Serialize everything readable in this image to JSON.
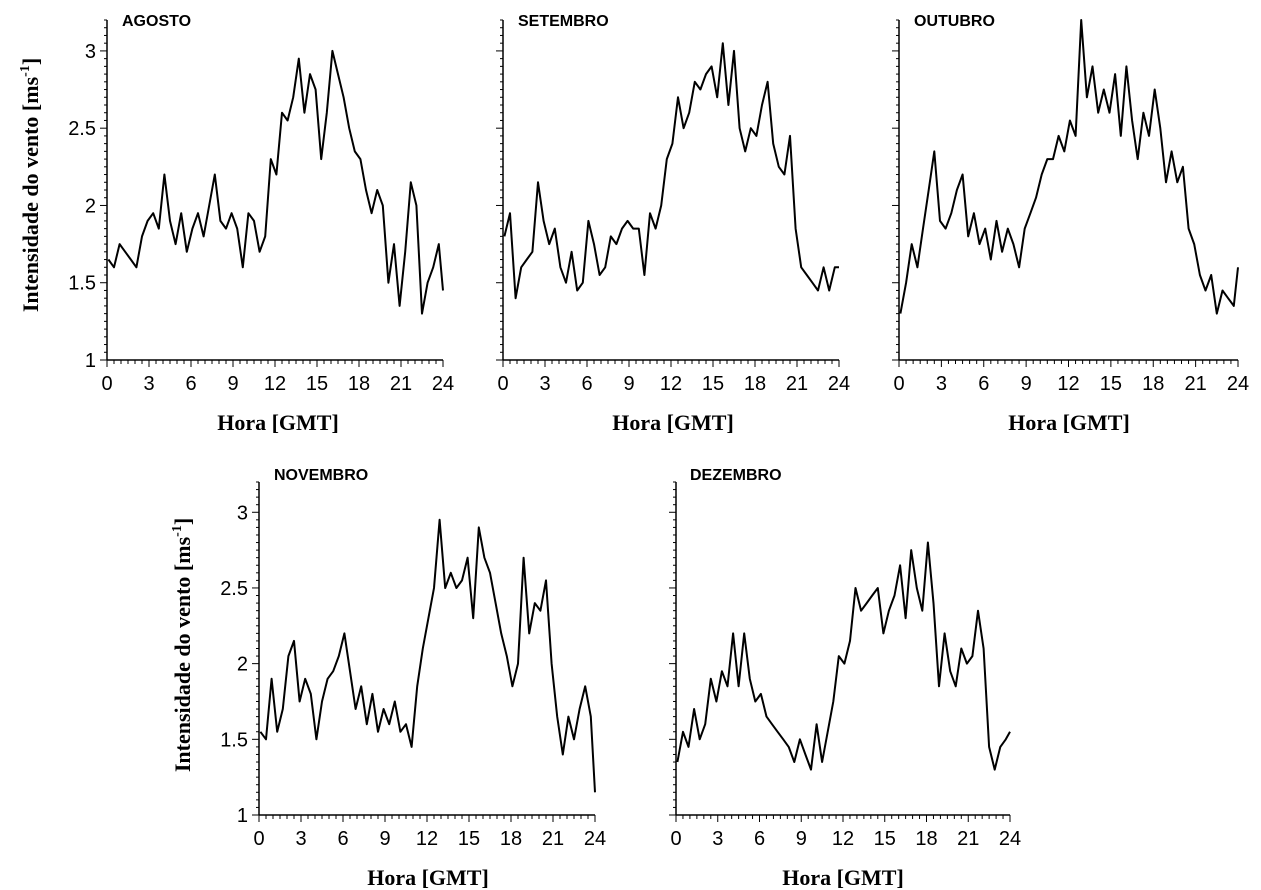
{
  "chart_data": [
    {
      "type": "line",
      "panel_title": "AGOSTO",
      "xlabel": "Hora [GMT]",
      "ylabel": "Intensidade do vento [ms-1]",
      "xlim": [
        0,
        24
      ],
      "ylim": [
        1,
        3.2
      ],
      "xticks": [
        0,
        3,
        6,
        9,
        12,
        15,
        18,
        21,
        24
      ],
      "yticks": [
        1,
        1.5,
        2,
        2.5,
        3
      ],
      "grid": false,
      "series": [
        {
          "x": [
            0.1,
            0.5,
            0.9,
            1.3,
            1.7,
            2.1,
            2.5,
            2.9,
            3.3,
            3.7,
            4.1,
            4.5,
            4.9,
            5.3,
            5.7,
            6.1,
            6.5,
            6.9,
            7.3,
            7.7,
            8.1,
            8.5,
            8.9,
            9.3,
            9.7,
            10.1,
            10.5,
            10.9,
            11.3,
            11.7,
            12.1,
            12.5,
            12.9,
            13.3,
            13.7,
            14.1,
            14.5,
            14.9,
            15.3,
            15.7,
            16.1,
            16.5,
            16.9,
            17.3,
            17.7,
            18.1,
            18.5,
            18.9,
            19.3,
            19.7,
            20.1,
            20.5,
            20.9,
            21.3,
            21.7,
            22.1,
            22.5,
            22.9,
            23.3,
            23.7,
            24.0
          ],
          "y": [
            1.65,
            1.6,
            1.75,
            1.7,
            1.65,
            1.6,
            1.8,
            1.9,
            1.95,
            1.85,
            2.2,
            1.9,
            1.75,
            1.95,
            1.7,
            1.85,
            1.95,
            1.8,
            2.0,
            2.2,
            1.9,
            1.85,
            1.95,
            1.85,
            1.6,
            1.95,
            1.9,
            1.7,
            1.8,
            2.3,
            2.2,
            2.6,
            2.55,
            2.7,
            2.95,
            2.6,
            2.85,
            2.75,
            2.3,
            2.6,
            3.0,
            2.85,
            2.7,
            2.5,
            2.35,
            2.3,
            2.1,
            1.95,
            2.1,
            2.0,
            1.5,
            1.75,
            1.35,
            1.7,
            2.15,
            2.0,
            1.3,
            1.5,
            1.6,
            1.75,
            1.45
          ]
        }
      ]
    },
    {
      "type": "line",
      "panel_title": "SETEMBRO",
      "xlabel": "Hora [GMT]",
      "ylabel": "",
      "xlim": [
        0,
        24
      ],
      "ylim": [
        1,
        3.2
      ],
      "xticks": [
        0,
        3,
        6,
        9,
        12,
        15,
        18,
        21,
        24
      ],
      "yticks": [
        1,
        1.5,
        2,
        2.5,
        3
      ],
      "grid": false,
      "series": [
        {
          "x": [
            0.1,
            0.5,
            0.9,
            1.3,
            1.7,
            2.1,
            2.5,
            2.9,
            3.3,
            3.7,
            4.1,
            4.5,
            4.9,
            5.3,
            5.7,
            6.1,
            6.5,
            6.9,
            7.3,
            7.7,
            8.1,
            8.5,
            8.9,
            9.3,
            9.7,
            10.1,
            10.5,
            10.9,
            11.3,
            11.7,
            12.1,
            12.5,
            12.9,
            13.3,
            13.7,
            14.1,
            14.5,
            14.9,
            15.3,
            15.7,
            16.1,
            16.5,
            16.9,
            17.3,
            17.7,
            18.1,
            18.5,
            18.9,
            19.3,
            19.7,
            20.1,
            20.5,
            20.9,
            21.3,
            21.7,
            22.1,
            22.5,
            22.9,
            23.3,
            23.7,
            24.0
          ],
          "y": [
            1.8,
            1.95,
            1.4,
            1.6,
            1.65,
            1.7,
            2.15,
            1.9,
            1.75,
            1.85,
            1.6,
            1.5,
            1.7,
            1.45,
            1.5,
            1.9,
            1.75,
            1.55,
            1.6,
            1.8,
            1.75,
            1.85,
            1.9,
            1.85,
            1.85,
            1.55,
            1.95,
            1.85,
            2.0,
            2.3,
            2.4,
            2.7,
            2.5,
            2.6,
            2.8,
            2.75,
            2.85,
            2.9,
            2.7,
            3.05,
            2.65,
            3.0,
            2.5,
            2.35,
            2.5,
            2.45,
            2.65,
            2.8,
            2.4,
            2.25,
            2.2,
            2.45,
            1.85,
            1.6,
            1.55,
            1.5,
            1.45,
            1.6,
            1.45,
            1.6,
            1.6
          ]
        }
      ]
    },
    {
      "type": "line",
      "panel_title": "OUTUBRO",
      "xlabel": "Hora [GMT]",
      "ylabel": "",
      "xlim": [
        0,
        24
      ],
      "ylim": [
        1,
        3.2
      ],
      "xticks": [
        0,
        3,
        6,
        9,
        12,
        15,
        18,
        21,
        24
      ],
      "yticks": [
        1,
        1.5,
        2,
        2.5,
        3
      ],
      "grid": false,
      "series": [
        {
          "x": [
            0.1,
            0.5,
            0.9,
            1.3,
            1.7,
            2.1,
            2.5,
            2.9,
            3.3,
            3.7,
            4.1,
            4.5,
            4.9,
            5.3,
            5.7,
            6.1,
            6.5,
            6.9,
            7.3,
            7.7,
            8.1,
            8.5,
            8.9,
            9.3,
            9.7,
            10.1,
            10.5,
            10.9,
            11.3,
            11.7,
            12.1,
            12.5,
            12.9,
            13.3,
            13.7,
            14.1,
            14.5,
            14.9,
            15.3,
            15.7,
            16.1,
            16.5,
            16.9,
            17.3,
            17.7,
            18.1,
            18.5,
            18.9,
            19.3,
            19.7,
            20.1,
            20.5,
            20.9,
            21.3,
            21.7,
            22.1,
            22.5,
            22.9,
            23.3,
            23.7,
            24.0
          ],
          "y": [
            1.3,
            1.5,
            1.75,
            1.6,
            1.85,
            2.1,
            2.35,
            1.9,
            1.85,
            1.95,
            2.1,
            2.2,
            1.8,
            1.95,
            1.75,
            1.85,
            1.65,
            1.9,
            1.7,
            1.85,
            1.75,
            1.6,
            1.85,
            1.95,
            2.05,
            2.2,
            2.3,
            2.3,
            2.45,
            2.35,
            2.55,
            2.45,
            3.2,
            2.7,
            2.9,
            2.6,
            2.75,
            2.6,
            2.85,
            2.45,
            2.9,
            2.55,
            2.3,
            2.6,
            2.45,
            2.75,
            2.5,
            2.15,
            2.35,
            2.15,
            2.25,
            1.85,
            1.75,
            1.55,
            1.45,
            1.55,
            1.3,
            1.45,
            1.4,
            1.35,
            1.6
          ]
        }
      ]
    },
    {
      "type": "line",
      "panel_title": "NOVEMBRO",
      "xlabel": "Hora [GMT]",
      "ylabel": "Intensidade do vento [ms-1]",
      "xlim": [
        0,
        24
      ],
      "ylim": [
        1,
        3.2
      ],
      "xticks": [
        0,
        3,
        6,
        9,
        12,
        15,
        18,
        21,
        24
      ],
      "yticks": [
        1,
        1.5,
        2,
        2.5,
        3
      ],
      "grid": false,
      "series": [
        {
          "x": [
            0.1,
            0.5,
            0.9,
            1.3,
            1.7,
            2.1,
            2.5,
            2.9,
            3.3,
            3.7,
            4.1,
            4.5,
            4.9,
            5.3,
            5.7,
            6.1,
            6.5,
            6.9,
            7.3,
            7.7,
            8.1,
            8.5,
            8.9,
            9.3,
            9.7,
            10.1,
            10.5,
            10.9,
            11.3,
            11.7,
            12.1,
            12.5,
            12.9,
            13.3,
            13.7,
            14.1,
            14.5,
            14.9,
            15.3,
            15.7,
            16.1,
            16.5,
            16.9,
            17.3,
            17.7,
            18.1,
            18.5,
            18.9,
            19.3,
            19.7,
            20.1,
            20.5,
            20.9,
            21.3,
            21.7,
            22.1,
            22.5,
            22.9,
            23.3,
            23.7,
            24.0
          ],
          "y": [
            1.55,
            1.5,
            1.9,
            1.55,
            1.7,
            2.05,
            2.15,
            1.75,
            1.9,
            1.8,
            1.5,
            1.75,
            1.9,
            1.95,
            2.05,
            2.2,
            1.95,
            1.7,
            1.85,
            1.6,
            1.8,
            1.55,
            1.7,
            1.6,
            1.75,
            1.55,
            1.6,
            1.45,
            1.85,
            2.1,
            2.3,
            2.5,
            2.95,
            2.5,
            2.6,
            2.5,
            2.55,
            2.7,
            2.3,
            2.9,
            2.7,
            2.6,
            2.4,
            2.2,
            2.05,
            1.85,
            2.0,
            2.7,
            2.2,
            2.4,
            2.35,
            2.55,
            2.0,
            1.65,
            1.4,
            1.65,
            1.5,
            1.7,
            1.85,
            1.65,
            1.15
          ]
        }
      ]
    },
    {
      "type": "line",
      "panel_title": "DEZEMBRO",
      "xlabel": "Hora [GMT]",
      "ylabel": "",
      "xlim": [
        0,
        24
      ],
      "ylim": [
        1,
        3.2
      ],
      "xticks": [
        0,
        3,
        6,
        9,
        12,
        15,
        18,
        21,
        24
      ],
      "yticks": [
        1,
        1.5,
        2,
        2.5,
        3
      ],
      "grid": false,
      "series": [
        {
          "x": [
            0.1,
            0.5,
            0.9,
            1.3,
            1.7,
            2.1,
            2.5,
            2.9,
            3.3,
            3.7,
            4.1,
            4.5,
            4.9,
            5.3,
            5.7,
            6.1,
            6.5,
            6.9,
            7.3,
            7.7,
            8.1,
            8.5,
            8.9,
            9.3,
            9.7,
            10.1,
            10.5,
            10.9,
            11.3,
            11.7,
            12.1,
            12.5,
            12.9,
            13.3,
            13.7,
            14.1,
            14.5,
            14.9,
            15.3,
            15.7,
            16.1,
            16.5,
            16.9,
            17.3,
            17.7,
            18.1,
            18.5,
            18.9,
            19.3,
            19.7,
            20.1,
            20.5,
            20.9,
            21.3,
            21.7,
            22.1,
            22.5,
            22.9,
            23.3,
            23.7,
            24.0
          ],
          "y": [
            1.35,
            1.55,
            1.45,
            1.7,
            1.5,
            1.6,
            1.9,
            1.75,
            1.95,
            1.85,
            2.2,
            1.85,
            2.2,
            1.9,
            1.75,
            1.8,
            1.65,
            1.6,
            1.55,
            1.5,
            1.45,
            1.35,
            1.5,
            1.4,
            1.3,
            1.6,
            1.35,
            1.55,
            1.75,
            2.05,
            2.0,
            2.15,
            2.5,
            2.35,
            2.4,
            2.45,
            2.5,
            2.2,
            2.35,
            2.45,
            2.65,
            2.3,
            2.75,
            2.5,
            2.35,
            2.8,
            2.4,
            1.85,
            2.2,
            1.95,
            1.85,
            2.1,
            2.0,
            2.05,
            2.35,
            2.1,
            1.45,
            1.3,
            1.45,
            1.5,
            1.55
          ]
        }
      ]
    }
  ]
}
